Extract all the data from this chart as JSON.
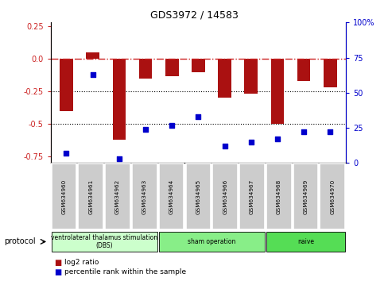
{
  "title": "GDS3972 / 14583",
  "samples": [
    "GSM634960",
    "GSM634961",
    "GSM634962",
    "GSM634963",
    "GSM634964",
    "GSM634965",
    "GSM634966",
    "GSM634967",
    "GSM634968",
    "GSM634969",
    "GSM634970"
  ],
  "log2_ratio": [
    -0.4,
    0.05,
    -0.62,
    -0.15,
    -0.13,
    -0.1,
    -0.3,
    -0.27,
    -0.5,
    -0.17,
    -0.22
  ],
  "percentile_rank": [
    7,
    63,
    3,
    24,
    27,
    33,
    12,
    15,
    17,
    22,
    22
  ],
  "bar_color": "#aa1111",
  "dot_color": "#0000cc",
  "dashed_line_color": "#cc2222",
  "ylim_left": [
    -0.8,
    0.28
  ],
  "ylim_right": [
    0,
    100
  ],
  "yticks_left": [
    0.25,
    0.0,
    -0.25,
    -0.5,
    -0.75
  ],
  "yticks_right": [
    100,
    75,
    50,
    25,
    0
  ],
  "dotted_lines": [
    -0.25,
    -0.5
  ],
  "protocol_groups": [
    {
      "label": "ventrolateral thalamus stimulation\n(DBS)",
      "start": 0,
      "end": 4,
      "color": "#ccffcc"
    },
    {
      "label": "sham operation",
      "start": 4,
      "end": 8,
      "color": "#88ee88"
    },
    {
      "label": "naive",
      "start": 8,
      "end": 11,
      "color": "#55dd55"
    }
  ],
  "legend_red_label": "log2 ratio",
  "legend_blue_label": "percentile rank within the sample",
  "bar_width": 0.5
}
